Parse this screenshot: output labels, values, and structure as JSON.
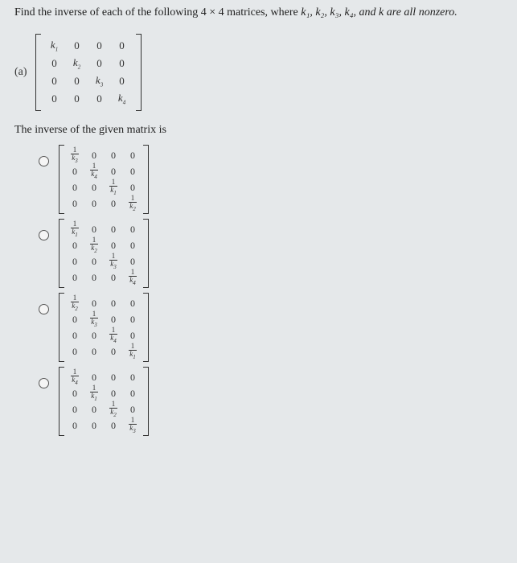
{
  "question_prefix": "Find the inverse of each of the following 4 × 4 matrices, where ",
  "question_vars": "k₁, k₂, k₃, k₄, and k are all nonzero.",
  "part_label": "(a)",
  "given_matrix": {
    "rows": [
      [
        "k₁",
        "0",
        "0",
        "0"
      ],
      [
        "0",
        "k₂",
        "0",
        "0"
      ],
      [
        "0",
        "0",
        "k₃",
        "0"
      ],
      [
        "0",
        "0",
        "0",
        "k₄"
      ]
    ]
  },
  "statement": "The inverse of the given matrix is",
  "options": [
    {
      "diag": [
        "k₃",
        "k₄",
        "k₁",
        "k₂"
      ]
    },
    {
      "diag": [
        "k₁",
        "k₂",
        "k₃",
        "k₄"
      ]
    },
    {
      "diag": [
        "k₂",
        "k₃",
        "k₄",
        "k₁"
      ]
    },
    {
      "diag": [
        "k₄",
        "k₁",
        "k₂",
        "k₃"
      ]
    }
  ]
}
